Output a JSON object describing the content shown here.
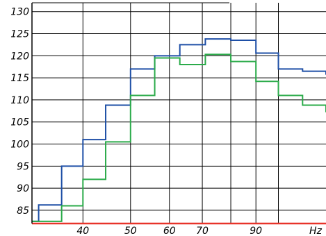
{
  "chart_data": {
    "type": "line",
    "title": "",
    "xlabel": "",
    "ylabel": "",
    "x_unit": "Hz",
    "x_scale": "log",
    "xlim": [
      31.5,
      125
    ],
    "ylim": [
      82,
      132
    ],
    "grid": true,
    "legend": "none",
    "colors": {
      "background": "#ffffff",
      "grid": "#000000",
      "frame": "#000000",
      "baseline": "#e8342a"
    },
    "y_ticks": [
      {
        "value": 85,
        "label": "85"
      },
      {
        "value": 90,
        "label": "90"
      },
      {
        "value": 95,
        "label": "95"
      },
      {
        "value": 100,
        "label": "100"
      },
      {
        "value": 105,
        "label": "105"
      },
      {
        "value": 110,
        "label": "110"
      },
      {
        "value": 115,
        "label": "115"
      },
      {
        "value": 120,
        "label": "120"
      },
      {
        "value": 125,
        "label": "125"
      },
      {
        "value": 130,
        "label": "130"
      }
    ],
    "x_gridlines": [
      40,
      50,
      60,
      70,
      80,
      90,
      100
    ],
    "x_ticks": [
      {
        "value": 40,
        "label": "40"
      },
      {
        "value": 50,
        "label": "50"
      },
      {
        "value": 60,
        "label": "60"
      },
      {
        "value": 70,
        "label": "70"
      },
      {
        "value": 90,
        "label": "90"
      },
      {
        "value": 120,
        "label": "Hz"
      }
    ],
    "series": [
      {
        "color": "#1e4fa6",
        "step": true,
        "points": [
          {
            "x": 31.5,
            "y": 82.5
          },
          {
            "x": 32.5,
            "y": 86.2
          },
          {
            "x": 36.2,
            "y": 95
          },
          {
            "x": 40,
            "y": 101
          },
          {
            "x": 44.5,
            "y": 108.8
          },
          {
            "x": 50,
            "y": 117
          },
          {
            "x": 56,
            "y": 120
          },
          {
            "x": 63,
            "y": 122.5
          },
          {
            "x": 71,
            "y": 123.8
          },
          {
            "x": 80,
            "y": 123.5
          },
          {
            "x": 90,
            "y": 120.6
          },
          {
            "x": 100,
            "y": 117
          },
          {
            "x": 112,
            "y": 116.5
          },
          {
            "x": 125,
            "y": 115.7
          }
        ]
      },
      {
        "color": "#2bab4a",
        "step": true,
        "points": [
          {
            "x": 31.5,
            "y": 82.5
          },
          {
            "x": 32.5,
            "y": 82.5
          },
          {
            "x": 36.2,
            "y": 86
          },
          {
            "x": 40,
            "y": 92
          },
          {
            "x": 44.5,
            "y": 100.5
          },
          {
            "x": 50,
            "y": 111
          },
          {
            "x": 56,
            "y": 119.5
          },
          {
            "x": 63,
            "y": 118
          },
          {
            "x": 71,
            "y": 120.3
          },
          {
            "x": 80,
            "y": 118.7
          },
          {
            "x": 90,
            "y": 114.2
          },
          {
            "x": 100,
            "y": 111
          },
          {
            "x": 112,
            "y": 108.8
          },
          {
            "x": 125,
            "y": 107.2
          }
        ]
      }
    ]
  }
}
